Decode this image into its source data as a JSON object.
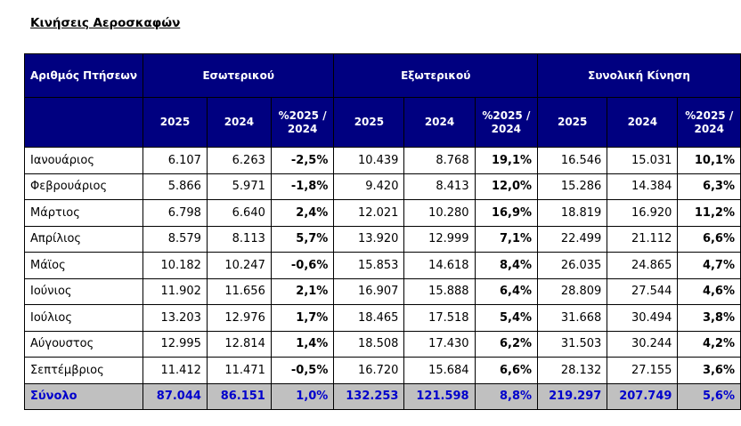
{
  "title": "Κινήσεις Αεροσκαφών",
  "header": {
    "row_label": "Αριθμός Πτήσεων",
    "groups": [
      "Εσωτερικού",
      "Εξωτερικού",
      "Συνολική Κίνηση"
    ],
    "subcols": [
      "2025",
      "2024",
      "%2025 / 2024"
    ]
  },
  "rows": [
    [
      "Ιανουάριος",
      "6.107",
      "6.263",
      "-2,5%",
      "10.439",
      "8.768",
      "19,1%",
      "16.546",
      "15.031",
      "10,1%"
    ],
    [
      "Φεβρουάριος",
      "5.866",
      "5.971",
      "-1,8%",
      "9.420",
      "8.413",
      "12,0%",
      "15.286",
      "14.384",
      "6,3%"
    ],
    [
      "Μάρτιος",
      "6.798",
      "6.640",
      "2,4%",
      "12.021",
      "10.280",
      "16,9%",
      "18.819",
      "16.920",
      "11,2%"
    ],
    [
      "Απρίλιος",
      "8.579",
      "8.113",
      "5,7%",
      "13.920",
      "12.999",
      "7,1%",
      "22.499",
      "21.112",
      "6,6%"
    ],
    [
      "Μάϊος",
      "10.182",
      "10.247",
      "-0,6%",
      "15.853",
      "14.618",
      "8,4%",
      "26.035",
      "24.865",
      "4,7%"
    ],
    [
      "Ιούνιος",
      "11.902",
      "11.656",
      "2,1%",
      "16.907",
      "15.888",
      "6,4%",
      "28.809",
      "27.544",
      "4,6%"
    ],
    [
      "Ιούλιος",
      "13.203",
      "12.976",
      "1,7%",
      "18.465",
      "17.518",
      "5,4%",
      "31.668",
      "30.494",
      "3,8%"
    ],
    [
      "Αύγουστος",
      "12.995",
      "12.814",
      "1,4%",
      "18.508",
      "17.430",
      "6,2%",
      "31.503",
      "30.244",
      "4,2%"
    ],
    [
      "Σεπτέμβριος",
      "11.412",
      "11.471",
      "-0,5%",
      "16.720",
      "15.684",
      "6,6%",
      "28.132",
      "27.155",
      "3,6%"
    ]
  ],
  "total": [
    "Σύνολο",
    "87.044",
    "86.151",
    "1,0%",
    "132.253",
    "121.598",
    "8,8%",
    "219.297",
    "207.749",
    "5,6%"
  ]
}
